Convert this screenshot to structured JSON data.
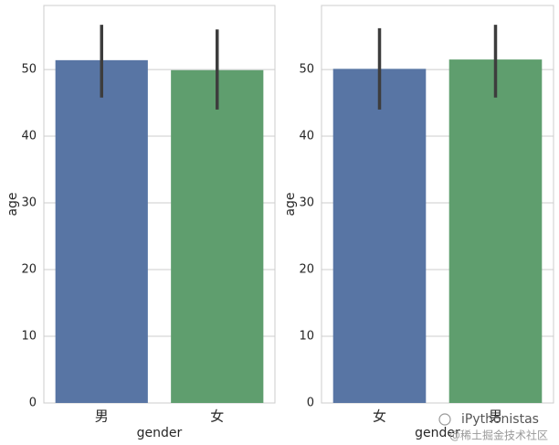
{
  "chart_data": [
    {
      "type": "bar",
      "categories": [
        "男",
        "女"
      ],
      "values": [
        51.4,
        49.9
      ],
      "ci_low": [
        45.8,
        44.0
      ],
      "ci_high": [
        56.7,
        56.0
      ],
      "colors": [
        "#5875a4",
        "#5f9e6e"
      ],
      "xlabel": "gender",
      "ylabel": "age",
      "ylim": [
        0,
        59.6
      ],
      "yticks": [
        0,
        10,
        20,
        30,
        40,
        50
      ],
      "grid": true
    },
    {
      "type": "bar",
      "categories": [
        "女",
        "男"
      ],
      "values": [
        50.1,
        51.5
      ],
      "ci_low": [
        44.0,
        45.8
      ],
      "ci_high": [
        56.2,
        56.7
      ],
      "colors": [
        "#5875a4",
        "#5f9e6e"
      ],
      "xlabel": "gender",
      "ylabel": "age",
      "ylim": [
        0,
        59.6
      ],
      "yticks": [
        0,
        10,
        20,
        30,
        40,
        50
      ],
      "grid": true
    }
  ],
  "watermark": {
    "name": "iPythonistas",
    "site": "@稀土掘金技术社区"
  }
}
